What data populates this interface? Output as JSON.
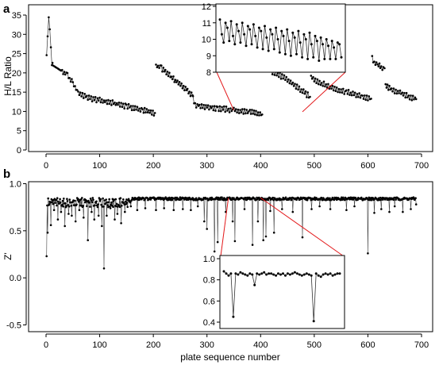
{
  "chart_data": [
    {
      "id": "a",
      "panel_label": "a",
      "type": "line",
      "ylabel": "H/L Ratio",
      "xlim": [
        0,
        700
      ],
      "ylim": [
        0,
        35
      ],
      "x_ticks": [
        0,
        100,
        200,
        300,
        400,
        500,
        600,
        700
      ],
      "y_ticks": [
        0,
        5,
        10,
        15,
        20,
        25,
        30,
        35
      ],
      "series": [
        {
          "segments": [
            {
              "points": [
                [
                  1,
                  24
                ],
                [
                  3,
                  29
                ],
                [
                  5,
                  34
                ],
                [
                  7,
                  31
                ],
                [
                  9,
                  26
                ],
                [
                  11,
                  22
                ]
              ]
            },
            {
              "points": [
                [
                  12,
                  22
                ],
                [
                  20,
                  21.3
                ],
                [
                  30,
                  20.4
                ],
                [
                  40,
                  19.3
                ],
                [
                  50,
                  17.3
                ],
                [
                  60,
                  14.8
                ],
                [
                  80,
                  13.5
                ],
                [
                  100,
                  12.9
                ],
                [
                  120,
                  12.3
                ],
                [
                  150,
                  11.4
                ],
                [
                  180,
                  10.3
                ],
                [
                  203,
                  9.6
                ]
              ]
            },
            {
              "points": [
                [
                  205,
                  21.8
                ],
                [
                  215,
                  21.3
                ],
                [
                  230,
                  19.3
                ],
                [
                  245,
                  17.5
                ],
                [
                  260,
                  16.0
                ],
                [
                  273,
                  14.2
                ]
              ]
            },
            {
              "points": [
                [
                  274,
                  13.5
                ],
                [
                  278,
                  11.8
                ],
                [
                  290,
                  11.4
                ],
                [
                  320,
                  10.8
                ],
                [
                  350,
                  10.3
                ],
                [
                  380,
                  9.8
                ],
                [
                  403,
                  9.2
                ]
              ]
            },
            {
              "points": [
                [
                  406,
                  21.8
                ],
                [
                  420,
                  20.5
                ],
                [
                  440,
                  19.0
                ],
                [
                  460,
                  17.2
                ],
                [
                  480,
                  15.0
                ],
                [
                  492,
                  13.8
                ]
              ]
            },
            {
              "points": [
                [
                  494,
                  19.0
                ],
                [
                  510,
                  17.5
                ],
                [
                  530,
                  16.3
                ],
                [
                  560,
                  15.0
                ],
                [
                  590,
                  13.8
                ],
                [
                  606,
                  13.3
                ]
              ]
            },
            {
              "points": [
                [
                  608,
                  23.8
                ],
                [
                  612,
                  22.5
                ],
                [
                  618,
                  22.0
                ],
                [
                  625,
                  21.5
                ],
                [
                  631,
                  21.2
                ]
              ]
            },
            {
              "points": [
                [
                  633,
                  16.5
                ],
                [
                  640,
                  16.0
                ],
                [
                  660,
                  14.8
                ],
                [
                  680,
                  13.7
                ],
                [
                  690,
                  13.2
                ]
              ]
            }
          ]
        }
      ],
      "inset": {
        "ylim": [
          8,
          12
        ],
        "y_ticks": [
          8,
          9,
          10,
          11,
          12
        ],
        "x_range": [
          350,
          478
        ],
        "values": [
          11.2,
          10.3,
          9.8,
          11.0,
          10.7,
          9.9,
          11.1,
          10.2,
          9.7,
          10.9,
          10.5,
          9.8,
          11.0,
          10.3,
          9.6,
          10.8,
          10.6,
          9.7,
          10.9,
          10.2,
          9.5,
          10.7,
          10.5,
          9.4,
          10.8,
          10.1,
          9.3,
          10.6,
          10.3,
          9.4,
          10.7,
          10.0,
          9.2,
          10.5,
          10.2,
          9.1,
          10.6,
          9.9,
          9.0,
          10.4,
          10.1,
          9.1,
          10.5,
          9.8,
          8.9,
          10.3,
          10.0,
          8.8,
          10.4,
          9.7,
          8.9,
          10.2,
          9.9,
          8.7,
          10.1,
          9.7,
          8.8,
          10.0,
          9.6,
          8.8,
          9.9,
          9.5,
          8.8,
          9.8,
          9.7,
          8.9
        ]
      }
    },
    {
      "id": "b",
      "panel_label": "b",
      "type": "line",
      "ylabel": "Z'",
      "xlabel": "plate sequence number",
      "xlim": [
        0,
        700
      ],
      "ylim": [
        -0.5,
        1.0
      ],
      "x_ticks": [
        0,
        100,
        200,
        300,
        400,
        500,
        600,
        700
      ],
      "y_ticks": [
        -0.5,
        0.0,
        0.5,
        1.0
      ],
      "y_tick_labels": [
        "-0.5",
        "0.0",
        "0.5",
        "1.0"
      ],
      "baseline": 0.84,
      "dips": [
        [
          1,
          0.23
        ],
        [
          3,
          0.48
        ],
        [
          6,
          0.78
        ],
        [
          9,
          0.56
        ],
        [
          15,
          0.72
        ],
        [
          22,
          0.62
        ],
        [
          28,
          0.7
        ],
        [
          35,
          0.55
        ],
        [
          42,
          0.68
        ],
        [
          48,
          0.66
        ],
        [
          55,
          0.6
        ],
        [
          62,
          0.72
        ],
        [
          70,
          0.64
        ],
        [
          78,
          0.4
        ],
        [
          85,
          0.7
        ],
        [
          90,
          0.62
        ],
        [
          98,
          0.66
        ],
        [
          104,
          0.55
        ],
        [
          108,
          0.1
        ],
        [
          113,
          0.66
        ],
        [
          120,
          0.74
        ],
        [
          128,
          0.62
        ],
        [
          133,
          0.68
        ],
        [
          140,
          0.58
        ],
        [
          147,
          0.7
        ],
        [
          158,
          0.76
        ],
        [
          170,
          0.72
        ],
        [
          185,
          0.74
        ],
        [
          205,
          0.72
        ],
        [
          220,
          0.74
        ],
        [
          238,
          0.72
        ],
        [
          255,
          0.73
        ],
        [
          270,
          0.72
        ],
        [
          283,
          0.76
        ],
        [
          295,
          0.6
        ],
        [
          300,
          0.52
        ],
        [
          314,
          0.28
        ],
        [
          320,
          0.38
        ],
        [
          335,
          0.7
        ],
        [
          348,
          0.6
        ],
        [
          352,
          0.39
        ],
        [
          370,
          0.73
        ],
        [
          385,
          0.35
        ],
        [
          395,
          0.6
        ],
        [
          405,
          0.4
        ],
        [
          410,
          0.44
        ],
        [
          418,
          0.71
        ],
        [
          425,
          0.48
        ],
        [
          440,
          0.73
        ],
        [
          460,
          0.7
        ],
        [
          478,
          0.43
        ],
        [
          495,
          0.73
        ],
        [
          510,
          0.76
        ],
        [
          530,
          0.73
        ],
        [
          560,
          0.72
        ],
        [
          575,
          0.76
        ],
        [
          600,
          0.26
        ],
        [
          612,
          0.69
        ],
        [
          625,
          0.73
        ],
        [
          640,
          0.7
        ],
        [
          650,
          0.76
        ],
        [
          665,
          0.7
        ],
        [
          680,
          0.73
        ],
        [
          690,
          0.78
        ]
      ],
      "inset": {
        "ylim": [
          0.4,
          1.0
        ],
        "y_ticks": [
          0.4,
          0.6,
          0.8,
          1.0
        ],
        "y_tick_labels": [
          "0.4",
          "0.6",
          "0.8",
          "1.0"
        ],
        "x_range": [
          340,
          400
        ],
        "values": [
          0.88,
          0.86,
          0.84,
          0.86,
          0.45,
          0.86,
          0.85,
          0.87,
          0.86,
          0.85,
          0.84,
          0.86,
          0.85,
          0.75,
          0.86,
          0.85,
          0.86,
          0.87,
          0.85,
          0.86,
          0.86,
          0.85,
          0.84,
          0.86,
          0.85,
          0.86,
          0.84,
          0.86,
          0.85,
          0.86,
          0.87,
          0.86,
          0.85,
          0.84,
          0.85,
          0.86,
          0.85,
          0.84,
          0.41,
          0.86,
          0.84,
          0.83,
          0.85,
          0.86,
          0.85,
          0.86,
          0.84,
          0.85,
          0.86,
          0.86
        ]
      }
    }
  ]
}
